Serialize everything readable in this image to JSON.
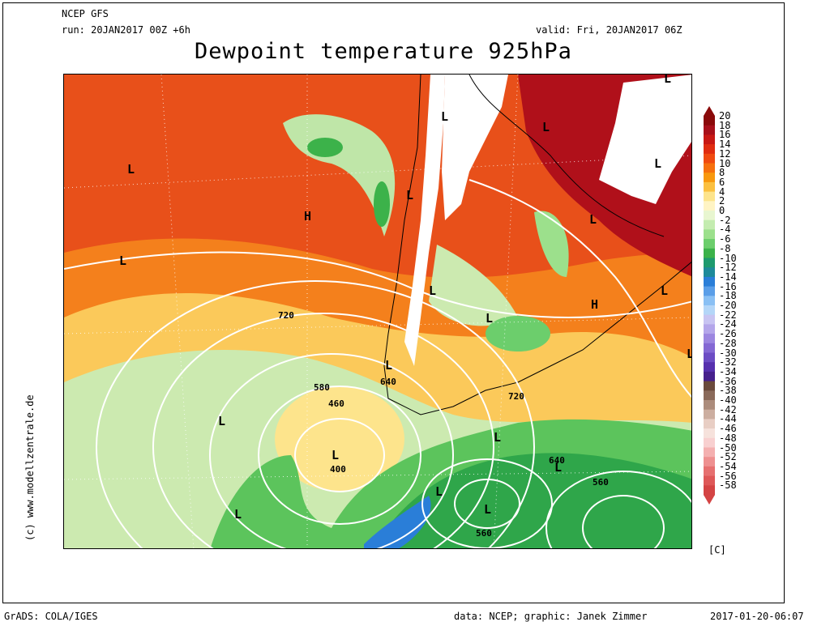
{
  "header": {
    "model": "NCEP GFS",
    "run": "run: 20JAN2017 00Z +6h",
    "valid": "valid: Fri, 20JAN2017 06Z",
    "title": "Dewpoint temperature 925hPa"
  },
  "footer": {
    "left": "GrADS: COLA/IGES",
    "credit": "data: NCEP; graphic: Janek Zimmer",
    "timestamp": "2017-01-20-06:07",
    "side": "(c) www.modellzentrale.de"
  },
  "legend": {
    "unit": "[C]",
    "labels": [
      "20",
      "18",
      "16",
      "14",
      "12",
      "10",
      "8",
      "6",
      "4",
      "2",
      "0",
      "-2",
      "-4",
      "-6",
      "-8",
      "-10",
      "-12",
      "-14",
      "-16",
      "-18",
      "-20",
      "-22",
      "-24",
      "-26",
      "-28",
      "-30",
      "-32",
      "-34",
      "-36",
      "-38",
      "-40",
      "-42",
      "-44",
      "-46",
      "-48",
      "-50",
      "-52",
      "-54",
      "-56",
      "-58"
    ],
    "colors": [
      "#8a0a0a",
      "#a8101a",
      "#c81814",
      "#e02c10",
      "#f04a10",
      "#f6700e",
      "#f8980e",
      "#fbc040",
      "#fde48c",
      "#fff4c4",
      "#e8f6d0",
      "#c4ecb0",
      "#9ce08c",
      "#6cce6c",
      "#3cb24a",
      "#1e9a6e",
      "#1e8a9a",
      "#2a7ed8",
      "#5a9ee8",
      "#8ac0f4",
      "#b4d6f8",
      "#c8c4f2",
      "#b4a6ea",
      "#9c86e0",
      "#8468d4",
      "#6c4cc4",
      "#5630ae",
      "#46208c",
      "#6a4a3c",
      "#8a6a5a",
      "#ac8c7c",
      "#ccaea0",
      "#e8cec4",
      "#f6e2dc",
      "#f8d0d0",
      "#f4b0b0",
      "#ee9090",
      "#e67070",
      "#de5858",
      "#d44444"
    ]
  },
  "map": {
    "pressure_labels": [
      "L",
      "L",
      "L",
      "L",
      "L",
      "L",
      "L",
      "L",
      "L",
      "L",
      "L",
      "L",
      "L",
      "L",
      "L",
      "L",
      "L",
      "L",
      "L",
      "L",
      "H",
      "H"
    ],
    "contour_labels": [
      "720",
      "640",
      "580",
      "460",
      "400",
      "720",
      "640",
      "560",
      "560"
    ]
  }
}
